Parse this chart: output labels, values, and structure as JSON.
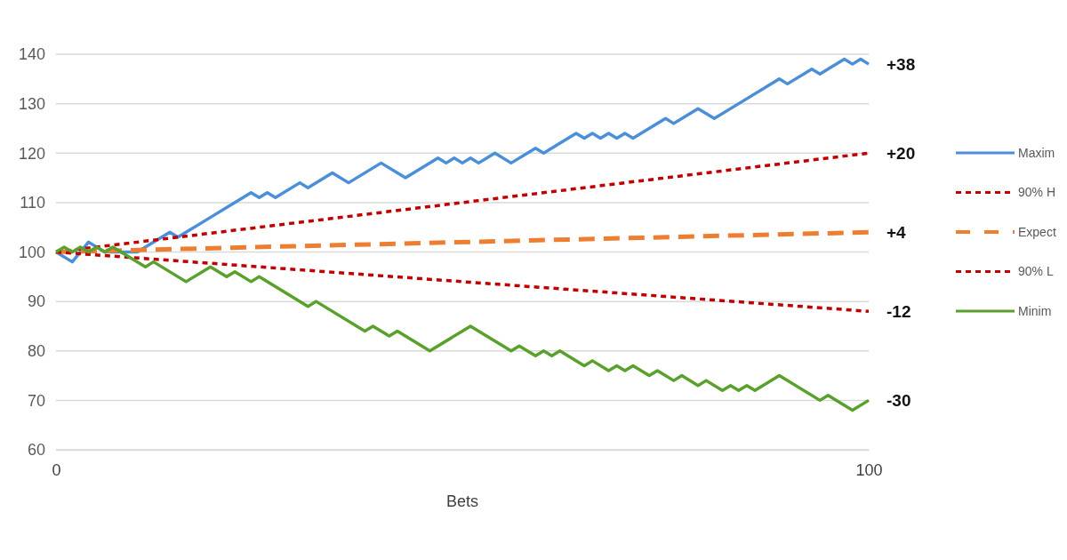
{
  "chart_data": {
    "type": "line",
    "xlabel": "Bets",
    "xlim": [
      0,
      100
    ],
    "xticks": [
      0,
      100
    ],
    "ylim": [
      60,
      140
    ],
    "yticks": [
      60,
      70,
      80,
      90,
      100,
      110,
      120,
      130,
      140
    ],
    "grid": "y",
    "legend": "right",
    "marker": "none",
    "series": [
      {
        "name": "Maxim",
        "color": "#4a8fd8",
        "line_style": "solid",
        "x": [
          0,
          2,
          4,
          6,
          10,
          14,
          15,
          18,
          24,
          25,
          26,
          27,
          30,
          31,
          34,
          36,
          40,
          43,
          47,
          48,
          49,
          50,
          51,
          52,
          54,
          56,
          59,
          60,
          64,
          65,
          66,
          67,
          68,
          69,
          70,
          71,
          75,
          76,
          79,
          81,
          84,
          89,
          90,
          93,
          94,
          97,
          98,
          99,
          100
        ],
        "values": [
          100,
          98,
          102,
          100,
          100,
          104,
          103,
          106,
          112,
          111,
          112,
          111,
          114,
          113,
          116,
          114,
          118,
          115,
          119,
          118,
          119,
          118,
          119,
          118,
          120,
          118,
          121,
          120,
          124,
          123,
          124,
          123,
          124,
          123,
          124,
          123,
          127,
          126,
          129,
          127,
          130,
          135,
          134,
          137,
          136,
          139,
          138,
          139,
          138
        ]
      },
      {
        "name": "90% H",
        "color": "#c00000",
        "line_style": "dotted",
        "x": [
          0,
          25,
          50,
          75,
          100
        ],
        "values": [
          100,
          105,
          110,
          115,
          120
        ]
      },
      {
        "name": "Expect",
        "color": "#ed7d31",
        "line_style": "dashed",
        "x": [
          0,
          100
        ],
        "values": [
          100,
          104
        ]
      },
      {
        "name": "90% L",
        "color": "#c00000",
        "line_style": "dotted",
        "x": [
          0,
          50,
          100
        ],
        "values": [
          100,
          94,
          88
        ]
      },
      {
        "name": "Minim",
        "color": "#5aa02c",
        "line_style": "solid",
        "x": [
          0,
          1,
          2,
          3,
          4,
          5,
          6,
          7,
          11,
          12,
          16,
          19,
          21,
          22,
          24,
          25,
          31,
          32,
          38,
          39,
          41,
          42,
          46,
          51,
          56,
          57,
          59,
          60,
          61,
          62,
          65,
          66,
          68,
          69,
          70,
          71,
          73,
          74,
          76,
          77,
          79,
          80,
          82,
          83,
          84,
          85,
          86,
          89,
          94,
          95,
          98,
          100
        ],
        "values": [
          100,
          101,
          100,
          101,
          100,
          101,
          100,
          101,
          97,
          98,
          94,
          97,
          95,
          96,
          94,
          95,
          89,
          90,
          84,
          85,
          83,
          84,
          80,
          85,
          80,
          81,
          79,
          80,
          79,
          80,
          77,
          78,
          76,
          77,
          76,
          77,
          75,
          76,
          74,
          75,
          73,
          74,
          72,
          73,
          72,
          73,
          72,
          75,
          70,
          71,
          68,
          70
        ]
      }
    ],
    "annotations": [
      "+38",
      "+20",
      "+4",
      "-12",
      "-30"
    ]
  }
}
